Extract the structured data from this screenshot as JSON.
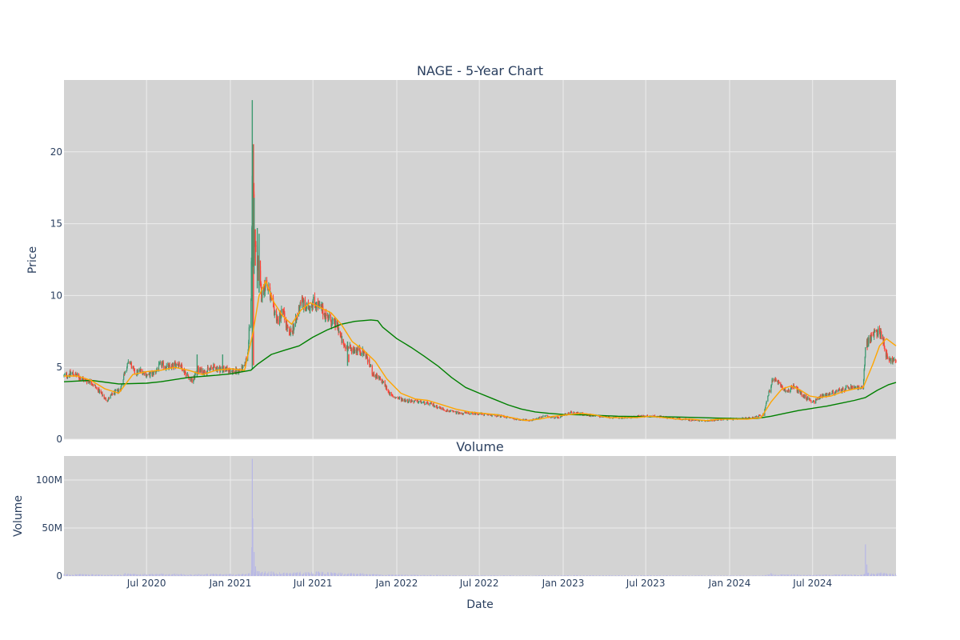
{
  "colors": {
    "plot_bg": "#d3d3d3",
    "grid": "#ececec",
    "text": "#2a3f5f",
    "up": "#3d9970",
    "down": "#ff4136",
    "ma_short": "#ffa500",
    "ma_long": "#008000",
    "volume": "#b7b7e6"
  },
  "chart_data": [
    {
      "type": "candlestick",
      "title": "NAGE - 5-Year Chart",
      "ylabel": "Price",
      "ylim": [
        0,
        25
      ],
      "yticks": [
        0,
        5,
        10,
        15,
        20
      ],
      "xlim": [
        "2020-01-02",
        "2024-12-31"
      ],
      "grid": true,
      "price_path": [
        [
          "2020-01-02",
          4.4
        ],
        [
          "2020-01-20",
          4.6
        ],
        [
          "2020-02-10",
          4.2
        ],
        [
          "2020-03-01",
          4.0
        ],
        [
          "2020-03-20",
          3.3
        ],
        [
          "2020-04-05",
          2.7
        ],
        [
          "2020-04-20",
          3.2
        ],
        [
          "2020-05-05",
          3.5
        ],
        [
          "2020-05-15",
          4.8
        ],
        [
          "2020-05-25",
          5.4
        ],
        [
          "2020-06-05",
          4.6
        ],
        [
          "2020-06-20",
          4.8
        ],
        [
          "2020-07-05",
          4.4
        ],
        [
          "2020-07-20",
          4.7
        ],
        [
          "2020-08-01",
          5.2
        ],
        [
          "2020-08-20",
          5.0
        ],
        [
          "2020-09-10",
          5.3
        ],
        [
          "2020-09-25",
          4.6
        ],
        [
          "2020-10-10",
          4.0
        ],
        [
          "2020-10-20",
          4.8
        ],
        [
          "2020-11-05",
          4.7
        ],
        [
          "2020-11-25",
          5.0
        ],
        [
          "2020-12-10",
          4.9
        ],
        [
          "2020-12-28",
          4.8
        ],
        [
          "2021-01-15",
          4.7
        ],
        [
          "2021-02-01",
          5.0
        ],
        [
          "2021-02-08",
          6.0
        ],
        [
          "2021-02-15",
          9.5
        ],
        [
          "2021-02-18",
          18.0
        ],
        [
          "2021-02-22",
          14.0
        ],
        [
          "2021-03-01",
          12.5
        ],
        [
          "2021-03-10",
          10.0
        ],
        [
          "2021-03-20",
          11.0
        ],
        [
          "2021-04-01",
          9.5
        ],
        [
          "2021-04-15",
          8.2
        ],
        [
          "2021-04-25",
          9.0
        ],
        [
          "2021-05-10",
          7.2
        ],
        [
          "2021-05-25",
          8.2
        ],
        [
          "2021-06-05",
          9.8
        ],
        [
          "2021-06-15",
          9.0
        ],
        [
          "2021-07-01",
          9.6
        ],
        [
          "2021-07-20",
          9.0
        ],
        [
          "2021-08-10",
          8.2
        ],
        [
          "2021-08-25",
          7.8
        ],
        [
          "2021-09-05",
          6.5
        ],
        [
          "2021-09-20",
          6.3
        ],
        [
          "2021-10-10",
          6.2
        ],
        [
          "2021-10-25",
          5.9
        ],
        [
          "2021-11-10",
          4.5
        ],
        [
          "2021-12-01",
          4.0
        ],
        [
          "2021-12-20",
          3.0
        ],
        [
          "2022-01-20",
          2.7
        ],
        [
          "2022-02-20",
          2.6
        ],
        [
          "2022-03-20",
          2.4
        ],
        [
          "2022-04-20",
          2.0
        ],
        [
          "2022-05-20",
          1.8
        ],
        [
          "2022-06-20",
          1.8
        ],
        [
          "2022-07-20",
          1.7
        ],
        [
          "2022-08-20",
          1.6
        ],
        [
          "2022-09-20",
          1.4
        ],
        [
          "2022-10-20",
          1.3
        ],
        [
          "2022-11-20",
          1.6
        ],
        [
          "2022-12-20",
          1.5
        ],
        [
          "2023-01-20",
          1.9
        ],
        [
          "2023-02-20",
          1.7
        ],
        [
          "2023-03-20",
          1.6
        ],
        [
          "2023-04-20",
          1.5
        ],
        [
          "2023-05-20",
          1.5
        ],
        [
          "2023-06-20",
          1.6
        ],
        [
          "2023-07-20",
          1.6
        ],
        [
          "2023-08-20",
          1.5
        ],
        [
          "2023-09-20",
          1.4
        ],
        [
          "2023-10-20",
          1.3
        ],
        [
          "2023-11-20",
          1.3
        ],
        [
          "2023-12-20",
          1.4
        ],
        [
          "2024-01-20",
          1.4
        ],
        [
          "2024-02-20",
          1.5
        ],
        [
          "2024-03-15",
          1.7
        ],
        [
          "2024-03-25",
          3.0
        ],
        [
          "2024-04-05",
          4.2
        ],
        [
          "2024-04-20",
          3.8
        ],
        [
          "2024-05-05",
          3.3
        ],
        [
          "2024-05-20",
          3.7
        ],
        [
          "2024-06-05",
          3.2
        ],
        [
          "2024-06-20",
          2.8
        ],
        [
          "2024-07-05",
          2.6
        ],
        [
          "2024-07-20",
          3.0
        ],
        [
          "2024-08-10",
          3.2
        ],
        [
          "2024-09-01",
          3.4
        ],
        [
          "2024-09-20",
          3.6
        ],
        [
          "2024-10-05",
          3.6
        ],
        [
          "2024-10-20",
          3.5
        ],
        [
          "2024-10-25",
          6.5
        ],
        [
          "2024-11-05",
          7.0
        ],
        [
          "2024-11-20",
          7.6
        ],
        [
          "2024-12-01",
          7.2
        ],
        [
          "2024-12-10",
          5.8
        ],
        [
          "2024-12-20",
          5.5
        ],
        [
          "2024-12-31",
          5.4
        ]
      ],
      "spikes": [
        [
          "2021-02-18",
          23.6,
          4.9
        ],
        [
          "2021-02-19",
          20.5,
          12.0
        ],
        [
          "2021-02-22",
          16.8,
          11.5
        ],
        [
          "2021-03-01",
          14.7,
          10.5
        ],
        [
          "2021-03-05",
          14.3,
          10.2
        ],
        [
          "2021-09-15",
          6.8,
          5.1
        ],
        [
          "2020-10-20",
          5.9,
          4.3
        ],
        [
          "2020-12-15",
          5.9,
          4.6
        ]
      ],
      "ma_short": [
        [
          "2020-01-02",
          4.4
        ],
        [
          "2020-02-01",
          4.4
        ],
        [
          "2020-03-01",
          4.1
        ],
        [
          "2020-04-01",
          3.5
        ],
        [
          "2020-05-01",
          3.2
        ],
        [
          "2020-06-01",
          4.5
        ],
        [
          "2020-07-01",
          4.7
        ],
        [
          "2020-08-01",
          4.8
        ],
        [
          "2020-09-01",
          5.0
        ],
        [
          "2020-10-01",
          4.8
        ],
        [
          "2020-11-01",
          4.5
        ],
        [
          "2020-12-01",
          4.8
        ],
        [
          "2021-01-01",
          4.9
        ],
        [
          "2021-02-01",
          4.8
        ],
        [
          "2021-02-20",
          7.5
        ],
        [
          "2021-03-05",
          10.0
        ],
        [
          "2021-03-20",
          11.0
        ],
        [
          "2021-04-05",
          9.6
        ],
        [
          "2021-04-25",
          8.6
        ],
        [
          "2021-05-15",
          8.0
        ],
        [
          "2021-06-05",
          9.0
        ],
        [
          "2021-06-25",
          9.5
        ],
        [
          "2021-07-15",
          9.2
        ],
        [
          "2021-08-10",
          8.8
        ],
        [
          "2021-09-01",
          8.0
        ],
        [
          "2021-09-25",
          6.8
        ],
        [
          "2021-10-20",
          6.2
        ],
        [
          "2021-11-15",
          5.4
        ],
        [
          "2021-12-10",
          4.2
        ],
        [
          "2022-01-10",
          3.2
        ],
        [
          "2022-02-10",
          2.8
        ],
        [
          "2022-03-10",
          2.7
        ],
        [
          "2022-04-10",
          2.4
        ],
        [
          "2022-05-10",
          2.1
        ],
        [
          "2022-06-10",
          1.9
        ],
        [
          "2022-07-10",
          1.8
        ],
        [
          "2022-08-10",
          1.7
        ],
        [
          "2022-09-10",
          1.5
        ],
        [
          "2022-10-10",
          1.3
        ],
        [
          "2022-11-10",
          1.4
        ],
        [
          "2022-12-10",
          1.6
        ],
        [
          "2023-01-10",
          1.7
        ],
        [
          "2023-02-10",
          1.8
        ],
        [
          "2023-03-10",
          1.7
        ],
        [
          "2023-04-10",
          1.5
        ],
        [
          "2023-05-10",
          1.5
        ],
        [
          "2023-06-10",
          1.5
        ],
        [
          "2023-07-10",
          1.6
        ],
        [
          "2023-08-10",
          1.5
        ],
        [
          "2023-09-10",
          1.4
        ],
        [
          "2023-10-10",
          1.4
        ],
        [
          "2023-11-10",
          1.3
        ],
        [
          "2023-12-10",
          1.4
        ],
        [
          "2024-01-10",
          1.4
        ],
        [
          "2024-02-10",
          1.4
        ],
        [
          "2024-03-10",
          1.5
        ],
        [
          "2024-04-01",
          2.6
        ],
        [
          "2024-04-25",
          3.5
        ],
        [
          "2024-05-15",
          3.7
        ],
        [
          "2024-06-05",
          3.4
        ],
        [
          "2024-06-25",
          3.0
        ],
        [
          "2024-07-15",
          2.9
        ],
        [
          "2024-08-10",
          3.0
        ],
        [
          "2024-09-05",
          3.3
        ],
        [
          "2024-10-01",
          3.5
        ],
        [
          "2024-10-20",
          3.6
        ],
        [
          "2024-11-10",
          5.2
        ],
        [
          "2024-11-25",
          6.5
        ],
        [
          "2024-12-10",
          7.0
        ],
        [
          "2024-12-31",
          6.5
        ]
      ],
      "ma_long": [
        [
          "2020-01-02",
          4.0
        ],
        [
          "2020-03-01",
          4.1
        ],
        [
          "2020-05-01",
          3.85
        ],
        [
          "2020-07-01",
          3.9
        ],
        [
          "2020-08-01",
          4.0
        ],
        [
          "2020-10-01",
          4.3
        ],
        [
          "2020-12-01",
          4.45
        ],
        [
          "2021-01-01",
          4.55
        ],
        [
          "2021-02-15",
          4.8
        ],
        [
          "2021-03-01",
          5.2
        ],
        [
          "2021-04-01",
          5.9
        ],
        [
          "2021-05-01",
          6.2
        ],
        [
          "2021-06-01",
          6.5
        ],
        [
          "2021-07-01",
          7.1
        ],
        [
          "2021-08-01",
          7.6
        ],
        [
          "2021-09-01",
          8.0
        ],
        [
          "2021-10-01",
          8.2
        ],
        [
          "2021-11-05",
          8.3
        ],
        [
          "2021-11-20",
          8.25
        ],
        [
          "2021-12-01",
          7.8
        ],
        [
          "2022-01-01",
          7.0
        ],
        [
          "2022-02-01",
          6.4
        ],
        [
          "2022-03-01",
          5.8
        ],
        [
          "2022-04-01",
          5.1
        ],
        [
          "2022-05-01",
          4.3
        ],
        [
          "2022-06-01",
          3.6
        ],
        [
          "2022-07-01",
          3.2
        ],
        [
          "2022-08-01",
          2.8
        ],
        [
          "2022-09-01",
          2.4
        ],
        [
          "2022-10-01",
          2.1
        ],
        [
          "2022-11-01",
          1.9
        ],
        [
          "2022-12-01",
          1.8
        ],
        [
          "2023-01-01",
          1.72
        ],
        [
          "2023-03-01",
          1.68
        ],
        [
          "2023-05-01",
          1.6
        ],
        [
          "2023-07-01",
          1.57
        ],
        [
          "2023-09-01",
          1.55
        ],
        [
          "2023-11-01",
          1.5
        ],
        [
          "2024-01-01",
          1.45
        ],
        [
          "2024-02-01",
          1.42
        ],
        [
          "2024-03-01",
          1.45
        ],
        [
          "2024-04-01",
          1.6
        ],
        [
          "2024-05-01",
          1.8
        ],
        [
          "2024-06-01",
          2.0
        ],
        [
          "2024-07-01",
          2.15
        ],
        [
          "2024-08-01",
          2.3
        ],
        [
          "2024-09-01",
          2.5
        ],
        [
          "2024-10-01",
          2.7
        ],
        [
          "2024-10-25",
          2.9
        ],
        [
          "2024-11-20",
          3.4
        ],
        [
          "2024-12-15",
          3.8
        ],
        [
          "2024-12-31",
          3.95
        ]
      ]
    },
    {
      "type": "bar",
      "title": "Volume",
      "xlabel": "Date",
      "ylabel": "Volume",
      "ylim": [
        0,
        125
      ],
      "yticks": [
        0,
        50,
        100
      ],
      "ytick_labels": [
        "0",
        "50M",
        "100M"
      ],
      "xticks": [
        "2020-07-01",
        "2021-01-01",
        "2021-07-01",
        "2022-01-01",
        "2022-07-01",
        "2023-01-01",
        "2023-07-01",
        "2024-01-01",
        "2024-07-01"
      ],
      "xtick_labels": [
        "Jul 2020",
        "Jan 2021",
        "Jul 2021",
        "Jan 2022",
        "Jul 2022",
        "Jan 2023",
        "Jul 2023",
        "Jan 2024",
        "Jul 2024"
      ],
      "base_volume_millions": 0.8,
      "volume_spikes": [
        [
          "2021-02-17",
          30
        ],
        [
          "2021-02-18",
          122
        ],
        [
          "2021-02-19",
          60
        ],
        [
          "2021-02-22",
          25
        ],
        [
          "2021-02-25",
          10
        ],
        [
          "2021-03-05",
          5
        ],
        [
          "2024-10-25",
          33
        ],
        [
          "2024-10-28",
          12
        ],
        [
          "2024-04-01",
          3
        ],
        [
          "2020-05-15",
          3
        ]
      ]
    }
  ]
}
